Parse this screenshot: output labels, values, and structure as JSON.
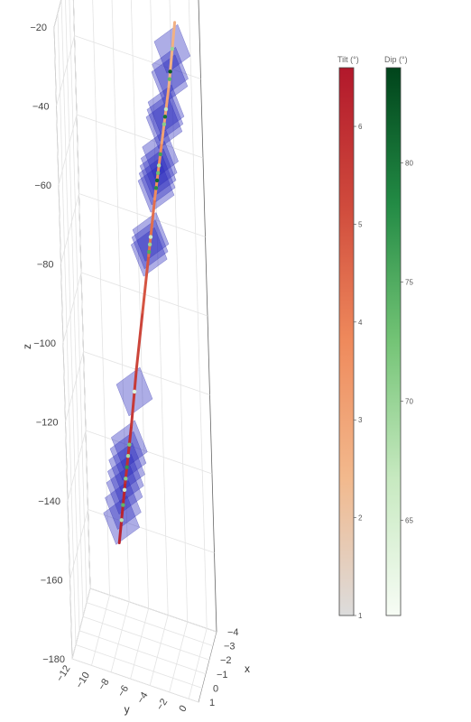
{
  "chart_data": {
    "type": "scatter3d",
    "axes": {
      "x": {
        "label": "x",
        "range": [
          1,
          -4
        ],
        "ticks": [
          1,
          0,
          -1,
          -2,
          -3,
          -4
        ]
      },
      "y": {
        "label": "y",
        "range": [
          -12,
          1
        ],
        "ticks": [
          -12,
          -10,
          -8,
          -6,
          -4,
          -2,
          0
        ]
      },
      "z": {
        "label": "z",
        "range": [
          -180,
          -20
        ],
        "ticks": [
          -20,
          -40,
          -60,
          -80,
          -100,
          -120,
          -140,
          -160,
          -180
        ]
      }
    },
    "grid": true,
    "well_path": {
      "points": [
        {
          "y": -7.8,
          "z": -156,
          "tilt": 6.4
        },
        {
          "y": -7.0,
          "z": -140,
          "tilt": 6.1
        },
        {
          "y": -6.2,
          "z": -125,
          "tilt": 5.8
        },
        {
          "y": -5.5,
          "z": -110,
          "tilt": 5.5
        },
        {
          "y": -4.7,
          "z": -95,
          "tilt": 5.2
        },
        {
          "y": -3.9,
          "z": -80,
          "tilt": 4.7
        },
        {
          "y": -3.1,
          "z": -65,
          "tilt": 4.1
        },
        {
          "y": -2.2,
          "z": -50,
          "tilt": 3.4
        },
        {
          "y": -1.3,
          "z": -35,
          "tilt": 2.8
        },
        {
          "y": -0.5,
          "z": -18,
          "tilt": 2.5
        }
      ]
    },
    "fractures": [
      {
        "z": -150,
        "dip": 68
      },
      {
        "z": -146,
        "dip": 74
      },
      {
        "z": -142,
        "dip": 66
      },
      {
        "z": -139,
        "dip": 71
      },
      {
        "z": -136,
        "dip": 77
      },
      {
        "z": -133,
        "dip": 69
      },
      {
        "z": -130,
        "dip": 72
      },
      {
        "z": -116,
        "dip": 64
      },
      {
        "z": -79,
        "dip": 75
      },
      {
        "z": -77,
        "dip": 70
      },
      {
        "z": -75,
        "dip": 66
      },
      {
        "z": -62,
        "dip": 78
      },
      {
        "z": -60,
        "dip": 81
      },
      {
        "z": -58,
        "dip": 73
      },
      {
        "z": -56,
        "dip": 69
      },
      {
        "z": -53,
        "dip": 76
      },
      {
        "z": -45,
        "dip": 71
      },
      {
        "z": -43,
        "dip": 80
      },
      {
        "z": -41,
        "dip": 67
      },
      {
        "z": -33,
        "dip": 74
      },
      {
        "z": -31,
        "dip": 82
      },
      {
        "z": -25,
        "dip": 70
      }
    ],
    "colorbars": [
      {
        "title": "Tilt (°)",
        "min": 1,
        "max": 6.6,
        "ticks": [
          1,
          2,
          3,
          4,
          5,
          6
        ],
        "colors": [
          "#dcdcdc",
          "#f2b98d",
          "#ef8a5c",
          "#cf4a3c",
          "#b2182b"
        ]
      },
      {
        "title": "Dip (°)",
        "min": 61,
        "max": 84,
        "ticks": [
          65,
          70,
          75,
          80
        ],
        "colors": [
          "#f7fcf5",
          "#c7e9c0",
          "#74c476",
          "#238b45",
          "#00441b"
        ]
      }
    ]
  }
}
